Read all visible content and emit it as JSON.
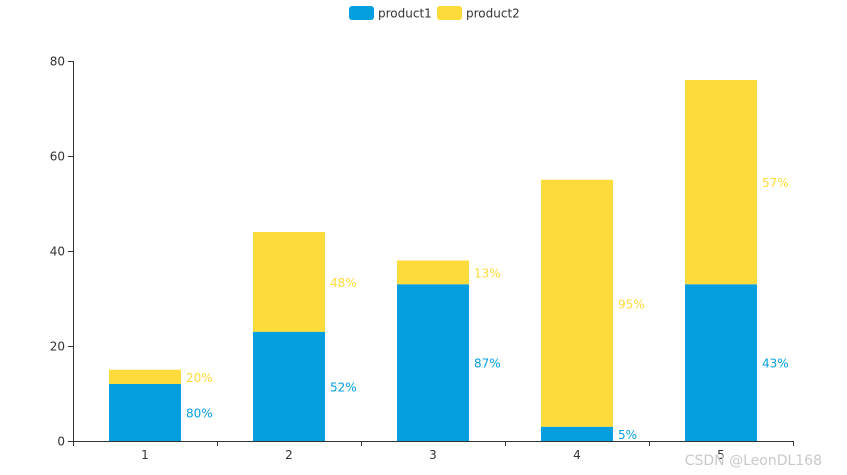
{
  "chart_data": {
    "type": "bar",
    "stacked": true,
    "categories": [
      "1",
      "2",
      "3",
      "4",
      "5"
    ],
    "series": [
      {
        "name": "product1",
        "color": "#059fe0",
        "values": [
          12,
          23,
          33,
          3,
          33
        ],
        "labels": [
          "80%",
          "52%",
          "87%",
          "5%",
          "43%"
        ]
      },
      {
        "name": "product2",
        "color": "#fcdb3a",
        "values": [
          3,
          21,
          5,
          52,
          43
        ],
        "labels": [
          "20%",
          "48%",
          "13%",
          "95%",
          "57%"
        ]
      }
    ],
    "ylim": [
      0,
      80
    ],
    "yticks": [
      "0",
      "20",
      "40",
      "60",
      "80"
    ],
    "legend": "top-center",
    "grid": false
  },
  "watermark": "CSDN @LeonDL168"
}
